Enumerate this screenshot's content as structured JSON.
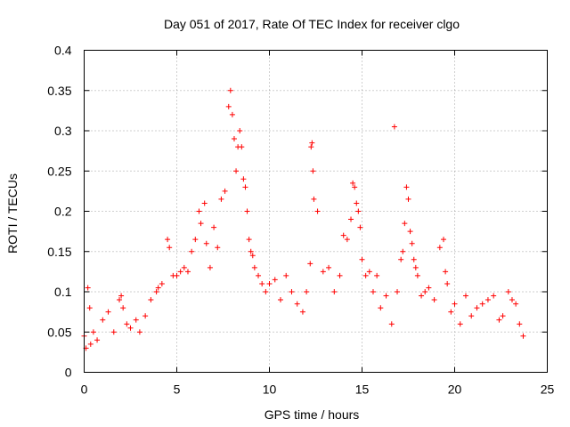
{
  "chart_data": {
    "type": "scatter",
    "title": "Day 051 of 2017, Rate Of TEC Index for receiver clgo",
    "xlabel": "GPS time / hours",
    "ylabel": "ROTI / TECUs",
    "xlim": [
      0,
      25
    ],
    "ylim": [
      0,
      0.4
    ],
    "x_ticks": [
      "0",
      "5",
      "10",
      "15",
      "20",
      "25"
    ],
    "y_ticks": [
      "0",
      "0.05",
      "0.1",
      "0.15",
      "0.2",
      "0.25",
      "0.3",
      "0.35",
      "0.4"
    ],
    "grid": true,
    "marker": "+",
    "series": [
      {
        "color": "#ff0000",
        "x": [
          0.0,
          0.1,
          0.2,
          0.3,
          0.35,
          0.5,
          0.7,
          1.0,
          1.3,
          1.6,
          1.9,
          2.0,
          2.1,
          2.3,
          2.5,
          2.8,
          3.0,
          3.3,
          3.6,
          3.9,
          4.0,
          4.2,
          4.5,
          4.6,
          4.8,
          5.0,
          5.2,
          5.4,
          5.6,
          5.8,
          6.0,
          6.2,
          6.3,
          6.5,
          6.6,
          6.8,
          7.0,
          7.2,
          7.4,
          7.6,
          7.8,
          7.9,
          8.0,
          8.1,
          8.2,
          8.3,
          8.4,
          8.5,
          8.6,
          8.7,
          8.8,
          8.9,
          9.0,
          9.1,
          9.2,
          9.4,
          9.6,
          9.8,
          10.0,
          10.3,
          10.6,
          10.9,
          11.2,
          11.5,
          11.8,
          12.0,
          12.2,
          12.25,
          12.3,
          12.35,
          12.4,
          12.6,
          12.9,
          13.2,
          13.5,
          13.8,
          14.0,
          14.2,
          14.4,
          14.5,
          14.6,
          14.7,
          14.8,
          14.9,
          15.0,
          15.2,
          15.4,
          15.6,
          15.8,
          16.0,
          16.3,
          16.6,
          16.75,
          16.9,
          17.1,
          17.2,
          17.3,
          17.4,
          17.5,
          17.6,
          17.7,
          17.8,
          17.9,
          18.0,
          18.2,
          18.4,
          18.6,
          18.9,
          19.2,
          19.4,
          19.5,
          19.6,
          19.8,
          20.0,
          20.3,
          20.6,
          20.9,
          21.2,
          21.5,
          21.8,
          22.1,
          22.4,
          22.6,
          22.9,
          23.1,
          23.3,
          23.5,
          23.7
        ],
        "y": [
          0.045,
          0.03,
          0.105,
          0.08,
          0.035,
          0.05,
          0.04,
          0.065,
          0.075,
          0.05,
          0.09,
          0.095,
          0.08,
          0.06,
          0.055,
          0.065,
          0.05,
          0.07,
          0.09,
          0.1,
          0.105,
          0.11,
          0.165,
          0.155,
          0.12,
          0.12,
          0.125,
          0.13,
          0.125,
          0.15,
          0.165,
          0.2,
          0.185,
          0.21,
          0.16,
          0.13,
          0.18,
          0.155,
          0.215,
          0.225,
          0.33,
          0.35,
          0.32,
          0.29,
          0.25,
          0.28,
          0.3,
          0.28,
          0.24,
          0.23,
          0.2,
          0.165,
          0.15,
          0.145,
          0.13,
          0.12,
          0.11,
          0.1,
          0.11,
          0.115,
          0.09,
          0.12,
          0.1,
          0.085,
          0.075,
          0.1,
          0.135,
          0.28,
          0.285,
          0.25,
          0.215,
          0.2,
          0.125,
          0.13,
          0.1,
          0.12,
          0.17,
          0.165,
          0.19,
          0.235,
          0.23,
          0.21,
          0.2,
          0.18,
          0.14,
          0.12,
          0.125,
          0.1,
          0.12,
          0.08,
          0.095,
          0.06,
          0.305,
          0.1,
          0.14,
          0.15,
          0.185,
          0.23,
          0.215,
          0.175,
          0.16,
          0.14,
          0.13,
          0.12,
          0.095,
          0.1,
          0.105,
          0.09,
          0.155,
          0.165,
          0.125,
          0.11,
          0.075,
          0.085,
          0.06,
          0.095,
          0.07,
          0.08,
          0.085,
          0.09,
          0.095,
          0.065,
          0.07,
          0.1,
          0.09,
          0.085,
          0.06,
          0.045
        ]
      }
    ]
  }
}
